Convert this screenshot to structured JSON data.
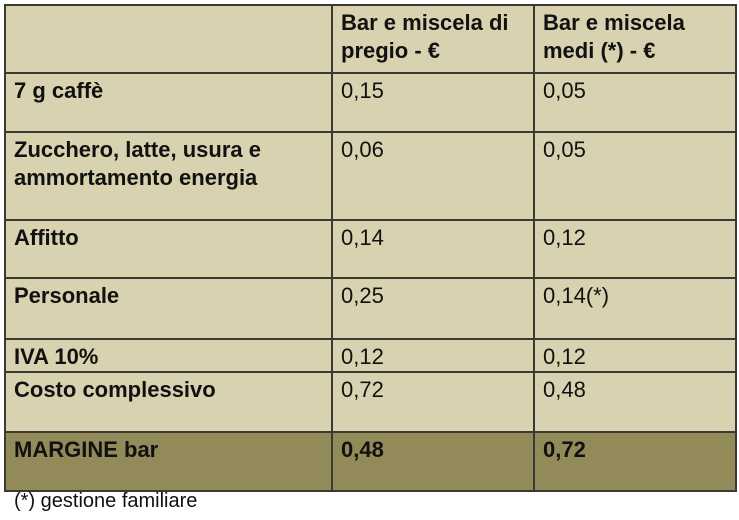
{
  "table": {
    "header": [
      "Bar e miscela di pregio - €",
      "Bar e miscela medi (*) - €"
    ],
    "rows": [
      [
        "7 g caffè",
        "0,15",
        "0,05"
      ],
      [
        "Zucchero, latte, usura e ammortamento energia",
        "0,06",
        "0,05"
      ],
      [
        "Affitto",
        "0,14",
        "0,12"
      ],
      [
        "Personale",
        "0,25",
        "0,14(*)"
      ],
      [
        "IVA 10%",
        "0,12",
        "0,12"
      ],
      [
        "Costo complessivo",
        "0,72",
        "0,48"
      ],
      [
        "MARGINE bar",
        "0,48",
        "0,72"
      ]
    ]
  },
  "footnote": "(*) gestione familiare"
}
